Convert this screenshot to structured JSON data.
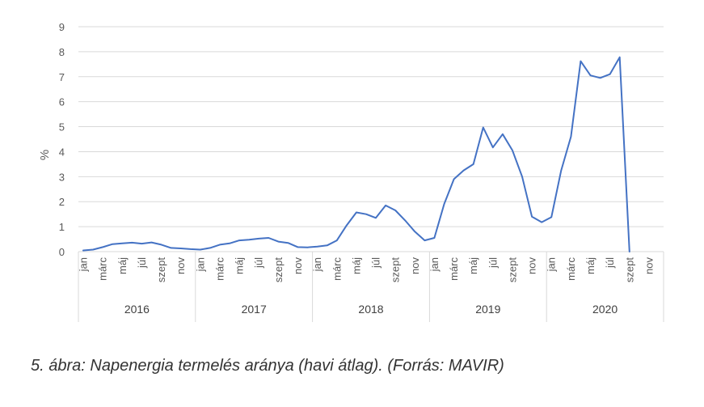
{
  "chart_data": {
    "type": "line",
    "ylabel": "%",
    "ylim": [
      0,
      9
    ],
    "yticks": [
      "0",
      "1",
      "2",
      "3",
      "4",
      "5",
      "6",
      "7",
      "8",
      "9"
    ],
    "grid": true,
    "month_labels": [
      "jan",
      "márc",
      "máj",
      "júl",
      "szept",
      "nov"
    ],
    "years": [
      "2016",
      "2017",
      "2018",
      "2019",
      "2020"
    ],
    "series_color": "#4472C4",
    "series": [
      {
        "values": [
          0.05,
          0.08,
          0.18,
          0.3,
          0.33,
          0.36,
          0.32,
          0.37,
          0.28,
          0.15,
          0.13,
          0.1,
          0.08,
          0.15,
          0.28,
          0.33,
          0.45,
          0.48,
          0.52,
          0.55,
          0.4,
          0.35,
          0.18,
          0.17,
          0.2,
          0.25,
          0.45,
          1.05,
          1.57,
          1.5,
          1.35,
          1.85,
          1.65,
          1.25,
          0.8,
          0.45,
          0.55,
          1.9,
          2.9,
          3.25,
          3.5,
          4.97,
          4.17,
          4.7,
          4.05,
          3.0,
          1.4,
          1.18,
          1.38,
          3.25,
          4.6,
          7.62,
          7.05,
          6.95,
          7.1,
          7.78,
          0.0
        ]
      }
    ]
  },
  "caption": "5. ábra: Napenergia termelés aránya (havi átlag). (Forrás: MAVIR)"
}
